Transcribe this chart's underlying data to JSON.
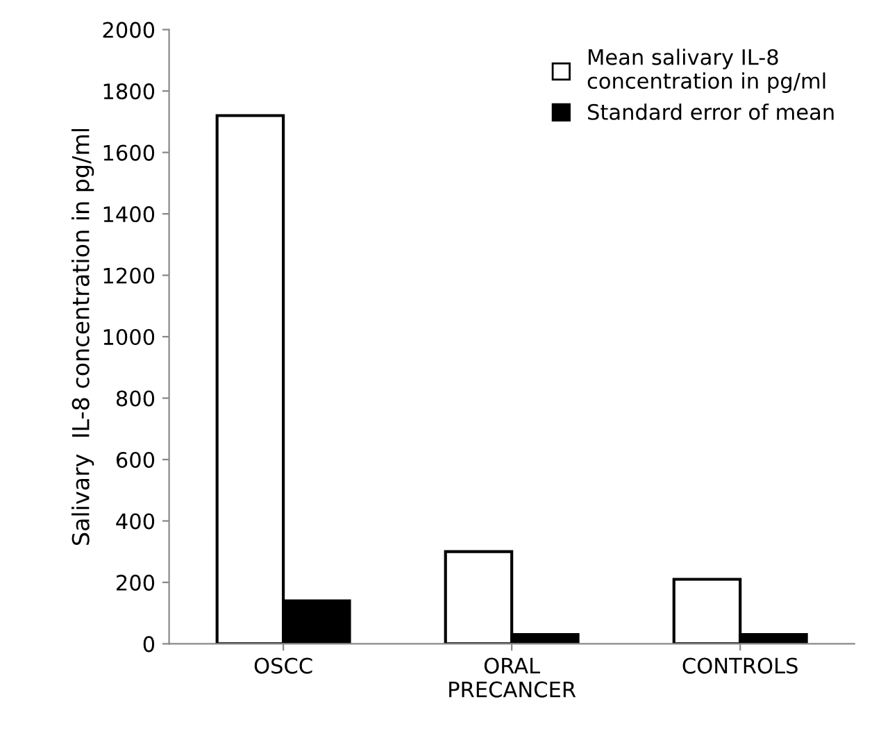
{
  "chart_data": {
    "type": "bar",
    "ylabel": "Salivary  IL-8 concentration in pg/ml",
    "categories": [
      "OSCC",
      "ORAL\nPRECANCER",
      "CONTROLS"
    ],
    "series": [
      {
        "name": "Mean salivary IL-8\nconcentration in pg/ml",
        "color": "#ffffff",
        "values": [
          1720,
          300,
          210
        ]
      },
      {
        "name": "Standard error of mean",
        "color": "#000000",
        "values": [
          140,
          30,
          30
        ]
      }
    ],
    "ylim": [
      0,
      2000
    ],
    "yticks": [
      0,
      200,
      400,
      600,
      800,
      1000,
      1200,
      1400,
      1600,
      1800,
      2000
    ],
    "grid": false,
    "legend": "top right"
  }
}
